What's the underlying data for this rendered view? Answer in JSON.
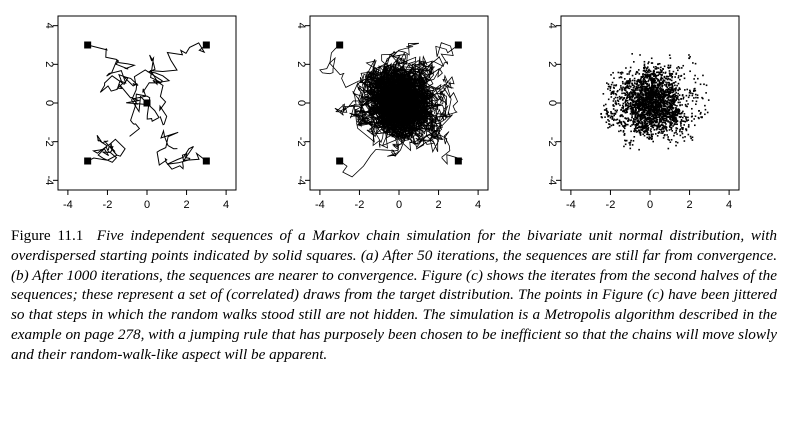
{
  "figure": {
    "panels": [
      {
        "id": "a",
        "description": "paths after 50 iterations"
      },
      {
        "id": "b",
        "description": "paths after 1000 iterations"
      },
      {
        "id": "c",
        "description": "jittered iterates from second halves"
      }
    ],
    "x_ticks": [
      "-4",
      "-2",
      "0",
      "2",
      "4"
    ],
    "y_ticks": [
      "-4",
      "-2",
      "0",
      "2",
      "4"
    ],
    "axis_range": [
      -4.5,
      4.5
    ],
    "starting_points": [
      [
        -3,
        3
      ],
      [
        3,
        3
      ],
      [
        -3,
        -3
      ],
      [
        3,
        -3
      ],
      [
        0,
        0
      ]
    ]
  },
  "caption": {
    "label": "Figure 11.1",
    "text": "Five independent sequences of a Markov chain simulation for the bivariate unit normal distribution, with overdispersed starting points indicated by solid squares. (a) After 50 iterations, the sequences are still far from convergence. (b) After 1000 iterations, the sequences are nearer to convergence. Figure (c) shows the iterates from the second halves of the sequences; these represent a set of (correlated) draws from the target distribution. The points in Figure (c) have been jittered so that steps in which the random walks stood still are not hidden. The simulation is a Metropolis algorithm described in the example on page 278, with a jumping rule that has purposely been chosen to be inefficient so that the chains will move slowly and their random-walk-like aspect will be apparent."
  }
}
